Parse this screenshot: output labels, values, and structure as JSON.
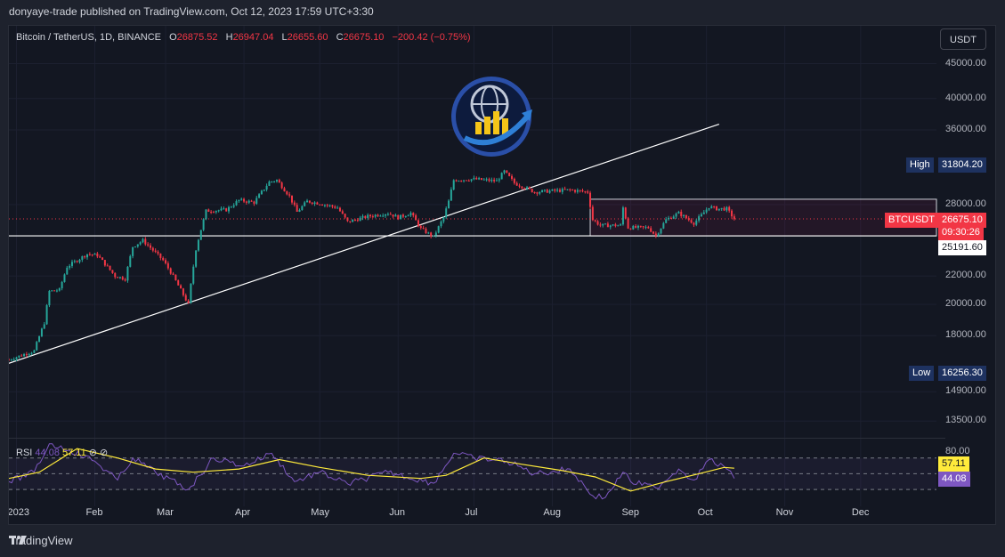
{
  "caption": "donyaye-trade published on TradingView.com, Oct 12, 2023 17:59 UTC+3:30",
  "legend": {
    "symbol": "Bitcoin / TetherUS, 1D, BINANCE",
    "open_k": "O",
    "open": "26875.52",
    "high_k": "H",
    "high": "26947.04",
    "low_k": "L",
    "low": "26655.60",
    "close_k": "C",
    "close": "26675.10",
    "change": "−200.42 (−0.75%)"
  },
  "currency": "USDT",
  "tags": {
    "high_label": "High",
    "high_value": "31804.20",
    "low_label": "Low",
    "low_value": "16256.30",
    "name": "BTCUSDT",
    "price": "26675.10",
    "countdown": "09:30:26",
    "support": "25191.60"
  },
  "rsi": {
    "label": "RSI",
    "value": "44.08",
    "ma": "57.11",
    "ob": "80.00"
  },
  "footer": "TradingView",
  "colors": {
    "up": "#26a69a",
    "down": "#f23645",
    "bg": "#131722",
    "rsi": "#7e57c2",
    "rsi_ma": "#ffeb3b"
  },
  "chart_data": {
    "type": "candlestick",
    "scale": "log",
    "ylim": [
      12800,
      47000
    ],
    "price_ticks": [
      45000,
      40000,
      36000,
      28000,
      22000,
      20000,
      18000,
      14900,
      13500
    ],
    "price_tick_labels": [
      "45000.00",
      "40000.00",
      "36000.00",
      "28000.00",
      "22000.00",
      "20000.00",
      "18000.00",
      "14900.00",
      "13500.00"
    ],
    "time_labels": [
      {
        "date": "2023-01-01",
        "label": "2023"
      },
      {
        "date": "2023-02-01",
        "label": "Feb"
      },
      {
        "date": "2023-03-01",
        "label": "Mar"
      },
      {
        "date": "2023-04-01",
        "label": "Apr"
      },
      {
        "date": "2023-05-01",
        "label": "May"
      },
      {
        "date": "2023-06-01",
        "label": "Jun"
      },
      {
        "date": "2023-07-01",
        "label": "Jul"
      },
      {
        "date": "2023-08-01",
        "label": "Aug"
      },
      {
        "date": "2023-09-01",
        "label": "Sep"
      },
      {
        "date": "2023-10-01",
        "label": "Oct"
      },
      {
        "date": "2023-11-01",
        "label": "Nov"
      },
      {
        "date": "2023-12-01",
        "label": "Dec"
      }
    ],
    "xlim": [
      "2022-12-29",
      "2023-12-31"
    ],
    "close_path": [
      [
        "2022-12-29",
        16600
      ],
      [
        "2023-01-08",
        17100
      ],
      [
        "2023-01-12",
        18800
      ],
      [
        "2023-01-14",
        20900
      ],
      [
        "2023-01-18",
        21000
      ],
      [
        "2023-01-21",
        22700
      ],
      [
        "2023-01-29",
        23700
      ],
      [
        "2023-02-02",
        23600
      ],
      [
        "2023-02-09",
        22000
      ],
      [
        "2023-02-13",
        21800
      ],
      [
        "2023-02-16",
        24300
      ],
      [
        "2023-02-20",
        24800
      ],
      [
        "2023-02-28",
        23200
      ],
      [
        "2023-03-03",
        22300
      ],
      [
        "2023-03-10",
        20000
      ],
      [
        "2023-03-13",
        24100
      ],
      [
        "2023-03-17",
        27400
      ],
      [
        "2023-03-25",
        27500
      ],
      [
        "2023-03-30",
        28400
      ],
      [
        "2023-04-05",
        28200
      ],
      [
        "2023-04-11",
        30200
      ],
      [
        "2023-04-14",
        30400
      ],
      [
        "2023-04-19",
        28800
      ],
      [
        "2023-04-22",
        27300
      ],
      [
        "2023-04-26",
        28300
      ],
      [
        "2023-05-01",
        28100
      ],
      [
        "2023-05-08",
        27700
      ],
      [
        "2023-05-12",
        26400
      ],
      [
        "2023-05-20",
        26900
      ],
      [
        "2023-05-28",
        27200
      ],
      [
        "2023-06-01",
        26800
      ],
      [
        "2023-06-06",
        27200
      ],
      [
        "2023-06-10",
        25800
      ],
      [
        "2023-06-15",
        25100
      ],
      [
        "2023-06-19",
        26800
      ],
      [
        "2023-06-21",
        28300
      ],
      [
        "2023-06-23",
        30400
      ],
      [
        "2023-07-01",
        30500
      ],
      [
        "2023-07-10",
        30300
      ],
      [
        "2023-07-13",
        31300
      ],
      [
        "2023-07-17",
        30100
      ],
      [
        "2023-07-25",
        29200
      ],
      [
        "2023-07-31",
        29300
      ],
      [
        "2023-08-08",
        29400
      ],
      [
        "2023-08-15",
        29200
      ],
      [
        "2023-08-17",
        26600
      ],
      [
        "2023-08-20",
        26100
      ],
      [
        "2023-08-28",
        26100
      ],
      [
        "2023-08-29",
        27700
      ],
      [
        "2023-08-31",
        25900
      ],
      [
        "2023-09-08",
        25900
      ],
      [
        "2023-09-11",
        25200
      ],
      [
        "2023-09-15",
        26600
      ],
      [
        "2023-09-20",
        27200
      ],
      [
        "2023-09-26",
        26300
      ],
      [
        "2023-09-29",
        27000
      ],
      [
        "2023-10-02",
        27800
      ],
      [
        "2023-10-05",
        27600
      ],
      [
        "2023-10-09",
        27600
      ],
      [
        "2023-10-12",
        26675
      ]
    ],
    "trendline": [
      [
        "2022-12-29",
        16400
      ],
      [
        "2023-10-06",
        36700
      ]
    ],
    "support_level": 25191.6,
    "range_box": {
      "start": "2023-08-16",
      "end": "2023-12-31",
      "top": 28500,
      "bottom": 25191.6
    },
    "last_price": 26675.1,
    "rsi_levels": {
      "upper": 70,
      "middle": 50,
      "lower": 30
    },
    "rsi_path": [
      [
        "2022-12-29",
        40
      ],
      [
        "2023-01-08",
        52
      ],
      [
        "2023-01-14",
        88
      ],
      [
        "2023-01-22",
        80
      ],
      [
        "2023-02-01",
        66
      ],
      [
        "2023-02-10",
        42
      ],
      [
        "2023-02-16",
        70
      ],
      [
        "2023-02-25",
        52
      ],
      [
        "2023-03-10",
        30
      ],
      [
        "2023-03-20",
        70
      ],
      [
        "2023-04-01",
        60
      ],
      [
        "2023-04-12",
        76
      ],
      [
        "2023-04-21",
        40
      ],
      [
        "2023-05-01",
        52
      ],
      [
        "2023-05-12",
        37
      ],
      [
        "2023-05-28",
        52
      ],
      [
        "2023-06-15",
        38
      ],
      [
        "2023-06-23",
        76
      ],
      [
        "2023-07-01",
        70
      ],
      [
        "2023-07-14",
        66
      ],
      [
        "2023-07-25",
        50
      ],
      [
        "2023-08-08",
        56
      ],
      [
        "2023-08-17",
        22
      ],
      [
        "2023-08-22",
        20
      ],
      [
        "2023-08-29",
        52
      ],
      [
        "2023-09-01",
        40
      ],
      [
        "2023-09-11",
        32
      ],
      [
        "2023-09-20",
        56
      ],
      [
        "2023-09-26",
        42
      ],
      [
        "2023-10-02",
        68
      ],
      [
        "2023-10-09",
        56
      ],
      [
        "2023-10-12",
        44
      ]
    ],
    "rsi_ma_path": [
      [
        "2022-12-29",
        44
      ],
      [
        "2023-01-10",
        52
      ],
      [
        "2023-01-25",
        82
      ],
      [
        "2023-02-10",
        70
      ],
      [
        "2023-02-25",
        56
      ],
      [
        "2023-03-12",
        52
      ],
      [
        "2023-03-30",
        56
      ],
      [
        "2023-04-15",
        68
      ],
      [
        "2023-05-01",
        58
      ],
      [
        "2023-05-20",
        48
      ],
      [
        "2023-06-10",
        44
      ],
      [
        "2023-06-20",
        48
      ],
      [
        "2023-07-05",
        70
      ],
      [
        "2023-07-20",
        62
      ],
      [
        "2023-08-05",
        54
      ],
      [
        "2023-08-18",
        46
      ],
      [
        "2023-09-01",
        28
      ],
      [
        "2023-09-15",
        40
      ],
      [
        "2023-09-28",
        50
      ],
      [
        "2023-10-08",
        58
      ],
      [
        "2023-10-12",
        57
      ]
    ]
  }
}
